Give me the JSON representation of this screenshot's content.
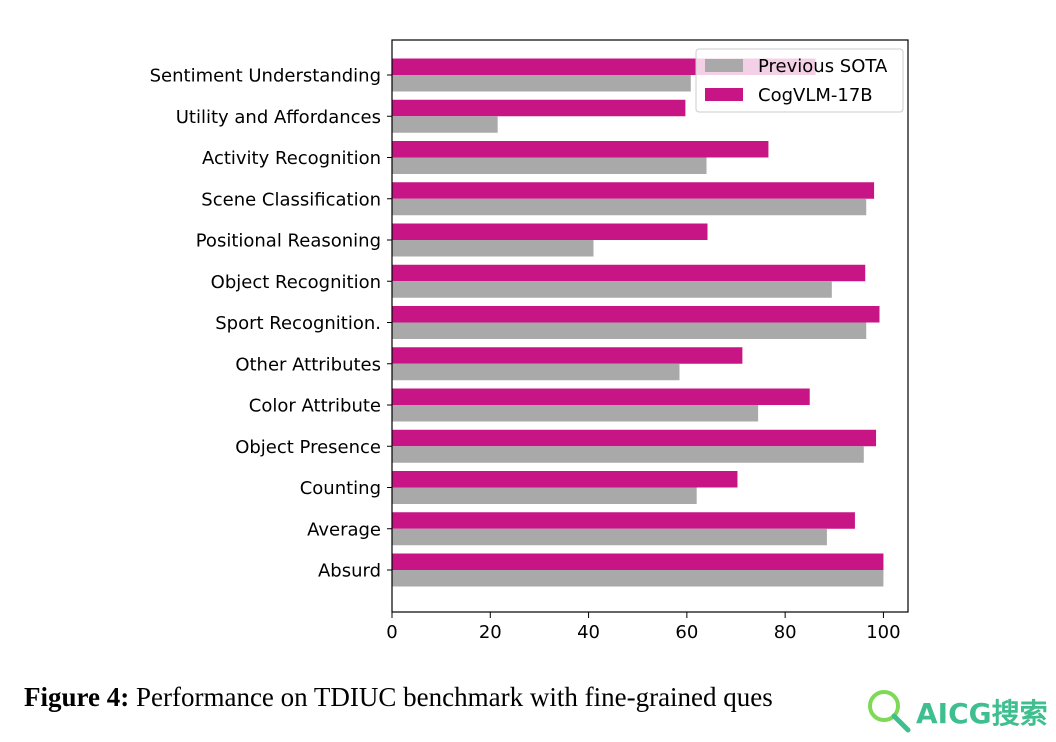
{
  "chart_data": {
    "type": "bar",
    "orientation": "horizontal",
    "categories": [
      "Absurd",
      "Average",
      "Counting",
      "Object Presence",
      "Color Attribute",
      "Other Attributes",
      "Sport Recognition.",
      "Object Recognition",
      "Positional Reasoning",
      "Scene Classification",
      "Activity Recognition",
      "Utility and Affordances",
      "Sentiment Understanding"
    ],
    "series": [
      {
        "name": "Previous SOTA",
        "color": "#a9a9a9",
        "values": [
          100,
          88.5,
          62,
          96,
          74.5,
          58.5,
          96.5,
          89.5,
          41,
          96.5,
          64,
          21.5,
          60.8
        ]
      },
      {
        "name": "CogVLM-17B",
        "color": "#c71585",
        "values": [
          100,
          94.2,
          70.3,
          98.5,
          85,
          71.3,
          99.2,
          96.3,
          64.2,
          98.1,
          76.6,
          59.7,
          86.2
        ]
      }
    ],
    "xlim": [
      0,
      105
    ],
    "xticks": [
      0,
      20,
      40,
      60,
      80,
      100
    ],
    "title": "",
    "xlabel": "",
    "ylabel": "",
    "legend_position": "top-right",
    "grid": false
  },
  "caption": {
    "label": "Figure 4:",
    "text": "Performance on TDIUC benchmark with fine-grained ques"
  },
  "watermark": {
    "text": "AICG搜索"
  }
}
